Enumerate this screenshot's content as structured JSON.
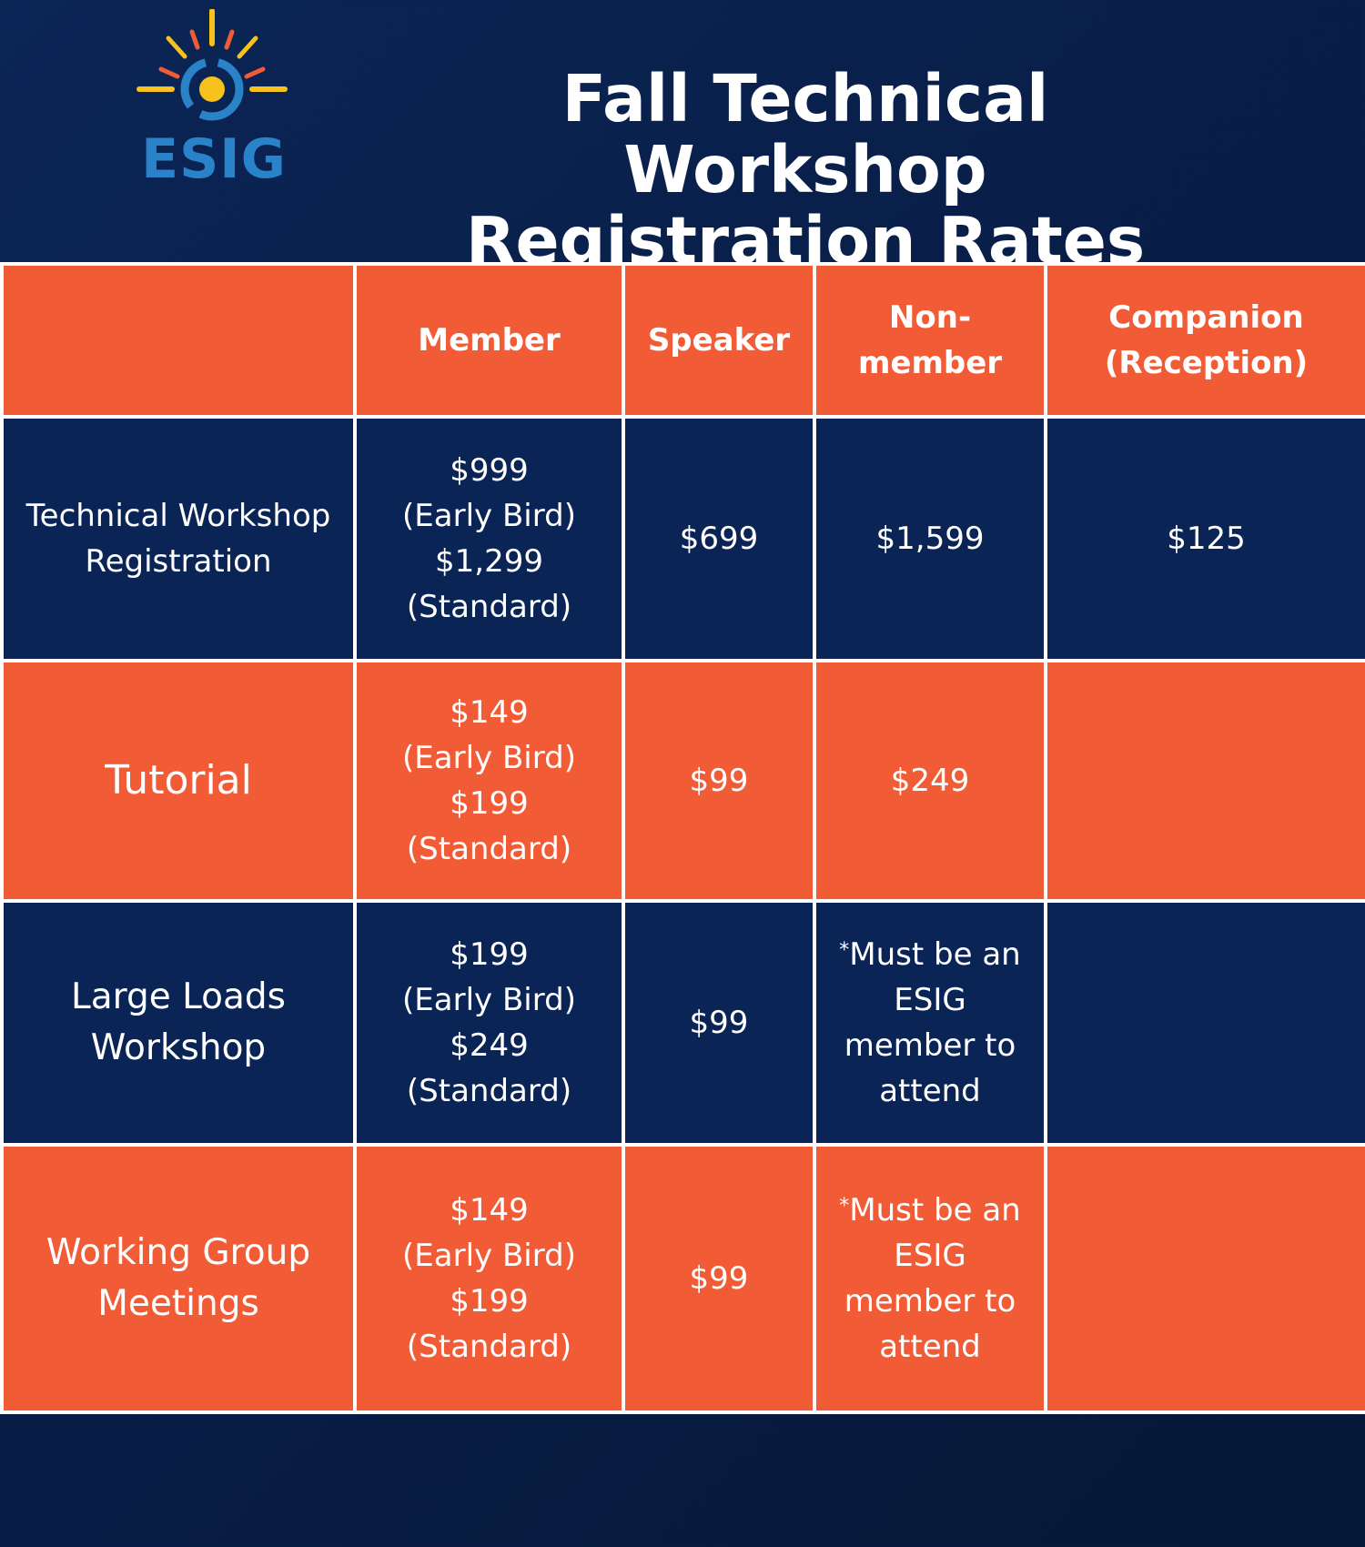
{
  "brand": {
    "logo_text": "ESIG",
    "sun_color": "#f7c21b",
    "ray_orange": "#f15c36",
    "swirl_blue": "#2a83c9"
  },
  "title": {
    "line1": "Fall Technical Workshop",
    "line2": "Registration Rates"
  },
  "colors": {
    "orange": "#f15c36",
    "navy": "#0b2456",
    "border": "#ffffff"
  },
  "table": {
    "headers": [
      "",
      "Member",
      "Speaker",
      "Non-\nmember",
      "Companion\n(Reception)"
    ],
    "rows": [
      {
        "label": "Technical Workshop\nRegistration",
        "member": "$999\n(Early Bird)\n$1,299\n(Standard)",
        "speaker": "$699",
        "nonmember": "$1,599",
        "companion": "$125"
      },
      {
        "label": "Tutorial",
        "member": "$149\n(Early Bird)\n$199\n(Standard)",
        "speaker": "$99",
        "nonmember": "$249",
        "companion": ""
      },
      {
        "label": "Large Loads\nWorkshop",
        "member": "$199\n(Early Bird)\n$249\n(Standard)",
        "speaker": "$99",
        "nonmember_mark": "*",
        "nonmember": "Must be an\nESIG\nmember to\nattend",
        "companion": ""
      },
      {
        "label": "Working Group\nMeetings",
        "member": "$149\n(Early Bird)\n$199\n(Standard)",
        "speaker": "$99",
        "nonmember_mark": "*",
        "nonmember": "Must be an\nESIG\nmember to\nattend",
        "companion": ""
      }
    ]
  }
}
